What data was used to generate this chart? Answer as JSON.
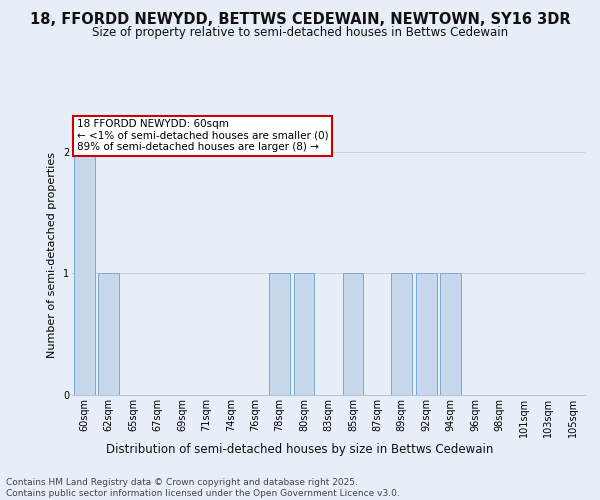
{
  "title": "18, FFORDD NEWYDD, BETTWS CEDEWAIN, NEWTOWN, SY16 3DR",
  "subtitle": "Size of property relative to semi-detached houses in Bettws Cedewain",
  "xlabel": "Distribution of semi-detached houses by size in Bettws Cedewain",
  "ylabel": "Number of semi-detached properties",
  "categories": [
    "60sqm",
    "62sqm",
    "65sqm",
    "67sqm",
    "69sqm",
    "71sqm",
    "74sqm",
    "76sqm",
    "78sqm",
    "80sqm",
    "83sqm",
    "85sqm",
    "87sqm",
    "89sqm",
    "92sqm",
    "94sqm",
    "96sqm",
    "98sqm",
    "101sqm",
    "103sqm",
    "105sqm"
  ],
  "values": [
    2,
    1,
    0,
    0,
    0,
    0,
    0,
    0,
    1,
    1,
    0,
    1,
    0,
    1,
    1,
    1,
    0,
    0,
    0,
    0,
    0
  ],
  "highlight_index": 0,
  "bar_color": "#c8d8ec",
  "bar_edge_color": "#7aaad0",
  "background_color": "#e8eef8",
  "plot_bg_color": "#e8eef8",
  "annotation_box_text": "18 FFORDD NEWYDD: 60sqm\n← <1% of semi-detached houses are smaller (0)\n89% of semi-detached houses are larger (8) →",
  "annotation_box_edge_color": "#cc0000",
  "footer_text": "Contains HM Land Registry data © Crown copyright and database right 2025.\nContains public sector information licensed under the Open Government Licence v3.0.",
  "ylim": [
    0,
    2.3
  ],
  "yticks": [
    0,
    1,
    2
  ],
  "title_fontsize": 10.5,
  "subtitle_fontsize": 8.5,
  "xlabel_fontsize": 8.5,
  "ylabel_fontsize": 8,
  "tick_fontsize": 7,
  "footer_fontsize": 6.5,
  "ann_fontsize": 7.5
}
